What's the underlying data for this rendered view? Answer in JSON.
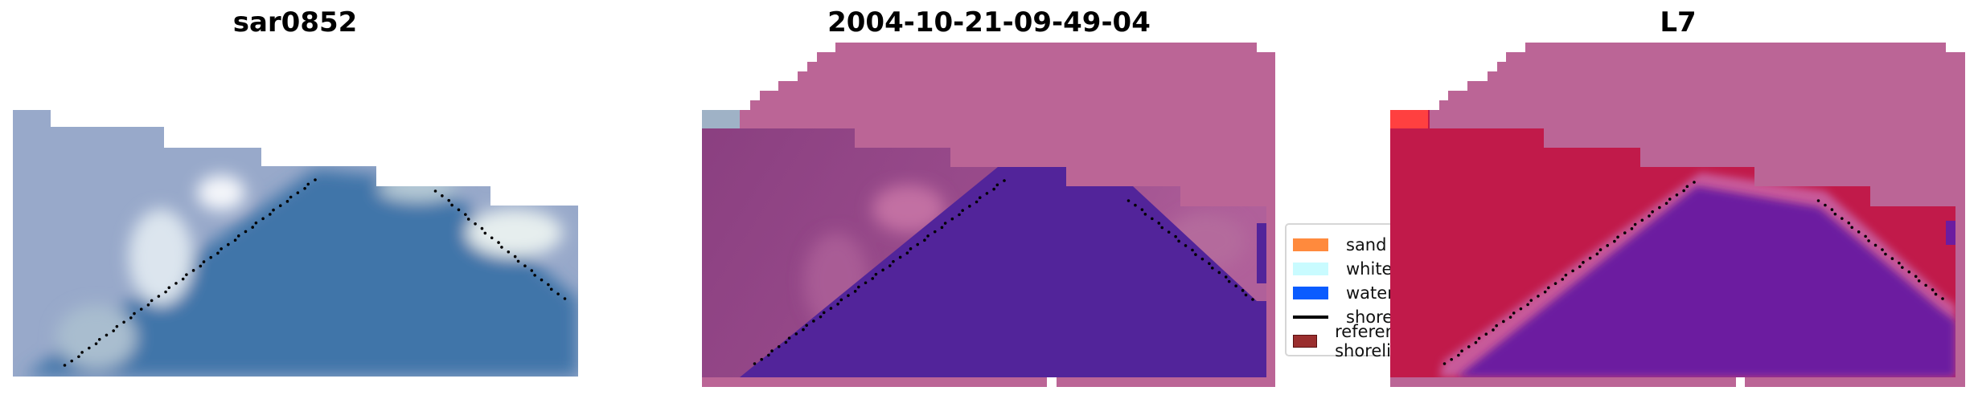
{
  "panels": [
    {
      "title": "sar0852"
    },
    {
      "title": "2004-10-21-09-49-04"
    },
    {
      "title": "L7"
    }
  ],
  "legend": {
    "items": [
      {
        "label": "sand",
        "type": "patch",
        "color": "#FF8A3D"
      },
      {
        "label": "whitewater",
        "type": "patch",
        "color": "#C9FBFF"
      },
      {
        "label": "water",
        "type": "patch",
        "color": "#0A5CFF"
      },
      {
        "label": "shoreline",
        "type": "line",
        "color": "#000000"
      },
      {
        "label": "reference shoreline",
        "type": "patch",
        "color": "#9A2E2E"
      }
    ]
  },
  "colors": {
    "mask_pink": "#BB6596",
    "land_purple": "#8A3F80",
    "water_purple": "#52249A",
    "land_red": "#C11A4A",
    "water_violet": "#6C1CA0",
    "rgb_water": "#3F75A9",
    "rgb_land": "#98A9CA"
  }
}
